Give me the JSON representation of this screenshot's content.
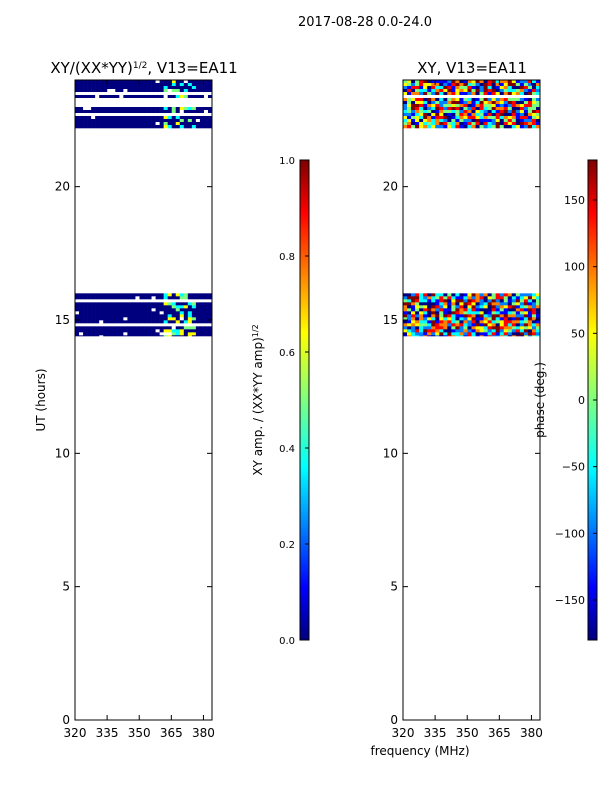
{
  "figure": {
    "suptitle": "2017-08-28 0.0-24.0",
    "xlabel": "frequency (MHz)"
  },
  "colors": {
    "ocean": "#00007f",
    "jet": [
      "#00007f",
      "#0000ff",
      "#007fff",
      "#00ffff",
      "#7fff7f",
      "#ffff00",
      "#ff7f00",
      "#ff0000",
      "#7f0000"
    ]
  },
  "chart_data": [
    {
      "type": "heatmap",
      "title_main": "XY/(XX*YY)",
      "title_sup": "1/2",
      "title_tail": ", V13=EA11",
      "ylabel": "UT (hours)",
      "xlim": [
        320,
        384
      ],
      "ylim": [
        0,
        24
      ],
      "xticks": [
        320,
        335,
        350,
        365,
        380
      ],
      "yticks": [
        0,
        5,
        10,
        15,
        20
      ],
      "data_bands_hours": [
        [
          14.4,
          16.0
        ],
        [
          22.2,
          24.0
        ]
      ],
      "bright_channel_mhz": [
        361,
        376
      ],
      "colorbar": {
        "label_main": "XY amp. / (XX*YY amp)",
        "label_sup": "1/2",
        "range": [
          0.0,
          1.0
        ],
        "ticks": [
          "0.0",
          "0.2",
          "0.4",
          "0.6",
          "0.8",
          "1.0"
        ]
      }
    },
    {
      "type": "heatmap",
      "title_main": "XY, V13=EA11",
      "ylabel": "",
      "xlim": [
        320,
        384
      ],
      "ylim": [
        0,
        24
      ],
      "xticks": [
        320,
        335,
        350,
        365,
        380
      ],
      "yticks": [
        0,
        5,
        10,
        15,
        20
      ],
      "data_bands_hours": [
        [
          14.4,
          16.0
        ],
        [
          22.2,
          24.0
        ]
      ],
      "colorbar": {
        "label_main": "phase (deg.)",
        "range": [
          -180,
          180
        ],
        "ticks": [
          "−150",
          "−100",
          "−50",
          "0",
          "50",
          "100",
          "150"
        ],
        "tick_values": [
          -150,
          -100,
          -50,
          0,
          50,
          100,
          150
        ]
      }
    }
  ]
}
